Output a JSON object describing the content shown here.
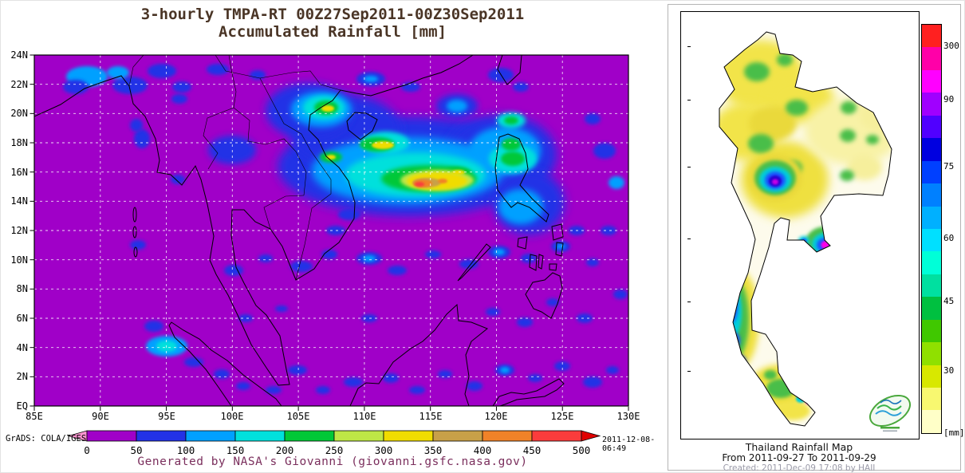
{
  "left_panel": {
    "title_line1": "3-hourly TMPA-RT 00Z27Sep2011-00Z30Sep2011",
    "title_line2": "Accumulated Rainfall [mm]",
    "title_color": "#4a3526",
    "grads_label": "GrADS: COLA/IGES",
    "timestamp": "2011-12-08-06:49",
    "credit": "Generated by NASA's Giovanni (giovanni.gsfc.nasa.gov)",
    "credit_color": "#7b2f5d",
    "lat_labels": [
      "24N",
      "22N",
      "20N",
      "18N",
      "16N",
      "14N",
      "12N",
      "10N",
      "8N",
      "6N",
      "4N",
      "2N",
      "EQ"
    ],
    "lon_labels": [
      "85E",
      "90E",
      "95E",
      "100E",
      "105E",
      "110E",
      "115E",
      "120E",
      "125E",
      "130E"
    ],
    "colorbar": {
      "tick_labels": [
        "0",
        "50",
        "100",
        "150",
        "200",
        "250",
        "300",
        "350",
        "400",
        "450",
        "500"
      ],
      "segment_colors": [
        "#A000C8",
        "#2332E6",
        "#00A0FF",
        "#00E0DC",
        "#00C837",
        "#BEE646",
        "#F0DC00",
        "#C8A048",
        "#F08228",
        "#FA3C3C"
      ],
      "left_arrow_color": "#FF96D2",
      "right_arrow_color": "#E00000"
    }
  },
  "right_panel": {
    "title": "Thailand Rainfall Map",
    "subtitle": "From 2011-09-27  To 2011-09-29",
    "created": "Created: 2011-Dec-09 17:08 by HAII",
    "colorbar": {
      "unit_label": "[mm]",
      "tick_labels": [
        "300",
        "90",
        "75",
        "60",
        "45",
        "30"
      ],
      "tick_positions": [
        0.055,
        0.185,
        0.35,
        0.525,
        0.68,
        0.85
      ],
      "segment_colors": [
        "#FF2020",
        "#FF00A8",
        "#FF00FF",
        "#A000FF",
        "#5000FF",
        "#0000E0",
        "#0040FF",
        "#0080FF",
        "#00B0FF",
        "#00E0FF",
        "#00FFD8",
        "#00E0A0",
        "#00C040",
        "#40C800",
        "#90E000",
        "#D8E800",
        "#F8F870",
        "#FFFFC8"
      ]
    }
  },
  "chart_data": [
    {
      "type": "heatmap",
      "title": "3-hourly TMPA-RT 00Z27Sep2011-00Z30Sep2011 Accumulated Rainfall [mm]",
      "x_range": [
        "85E",
        "130E"
      ],
      "y_range": [
        "EQ",
        "24N"
      ],
      "levels_mm": [
        0,
        50,
        100,
        150,
        200,
        250,
        300,
        350,
        400,
        450,
        500
      ],
      "units": "mm",
      "legend_position": "bottom",
      "grid": true
    },
    {
      "type": "heatmap",
      "title": "Thailand Rainfall Map",
      "period": "From 2011-09-27 To 2011-09-29",
      "labeled_levels_mm": [
        30,
        45,
        60,
        75,
        90,
        300
      ],
      "units": "mm",
      "legend_position": "right",
      "grid": false
    }
  ]
}
